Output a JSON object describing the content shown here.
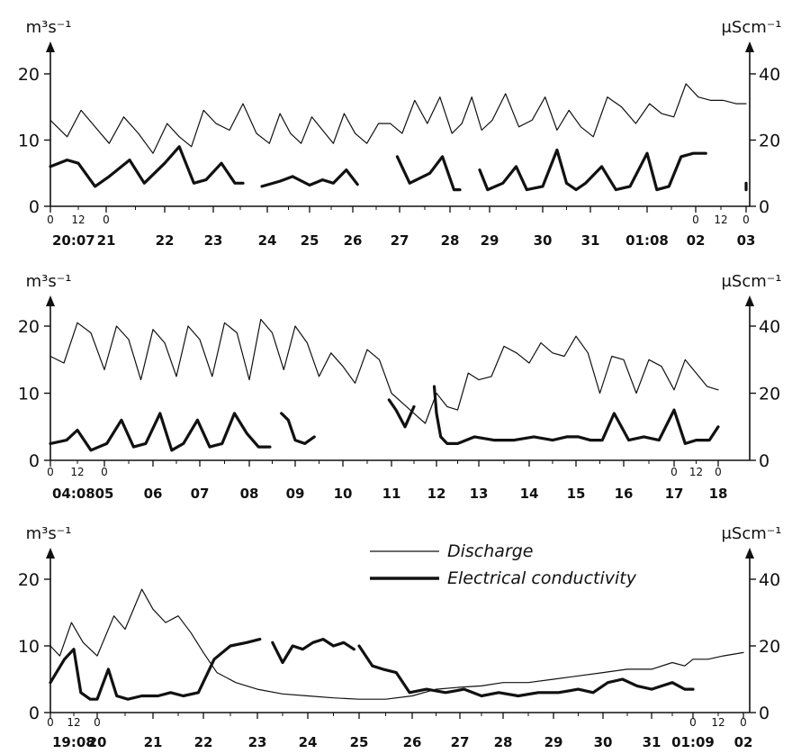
{
  "chart_data": [
    {
      "type": "line",
      "left_unit": "m³s⁻¹",
      "right_unit": "μScm⁻¹",
      "ylim_left": [
        0,
        20
      ],
      "ylim_right": [
        0,
        40
      ],
      "yticks_left": [
        "0",
        "10",
        "20"
      ],
      "yticks_right": [
        "0",
        "20",
        "40"
      ],
      "hour_marks_start": [
        "0",
        "12",
        "0"
      ],
      "hour_marks_end": [
        "0",
        "12",
        "0"
      ],
      "days": [
        "20:07",
        "21",
        "22",
        "23",
        "24",
        "25",
        "26",
        "27",
        "28",
        "29",
        "30",
        "31",
        "01:08",
        "02",
        "03"
      ],
      "series": [
        {
          "name": "Discharge",
          "x": [
            0,
            0.3,
            0.55,
            0.8,
            1.05,
            1.3,
            1.55,
            1.8,
            2.05,
            2.3,
            2.55,
            2.8,
            3.05,
            3.3,
            3.55,
            3.8,
            4.05,
            4.3,
            4.55,
            4.8,
            5.05,
            5.3,
            5.55,
            5.8,
            6.05,
            6.3,
            6.55,
            6.8,
            7.05,
            7.3,
            7.55,
            7.8,
            8.05,
            8.3,
            8.55,
            8.8,
            9.05,
            9.3,
            9.55,
            9.8,
            10.05,
            10.3,
            10.55,
            10.8,
            11.05,
            11.3,
            11.55,
            11.8,
            12.05,
            12.3,
            12.55,
            12.8,
            13.05,
            13.3,
            13.55,
            13.8,
            14
          ],
          "y": [
            13,
            10.5,
            14.5,
            12,
            9.5,
            13.5,
            11,
            8,
            12.5,
            10.5,
            9,
            14.5,
            12.5,
            11.5,
            15.5,
            11,
            9.5,
            14,
            11,
            9.5,
            13.5,
            11.5,
            9.5,
            14,
            11,
            9.5,
            12.5,
            12.5,
            11,
            16,
            12.5,
            16.5,
            11,
            12.5,
            16.5,
            11.5,
            13,
            17,
            12,
            13,
            16.5,
            11.5,
            14.5,
            12,
            10.5,
            16.5,
            15,
            12.5,
            15.5,
            14,
            13.5,
            18.5,
            16.5,
            16,
            16,
            15.5,
            15.5
          ]
        },
        {
          "name": "Electrical conductivity",
          "segments": [
            {
              "x": [
                0,
                0.3,
                0.5,
                0.8,
                1.05,
                1.4,
                1.65,
                2.0,
                2.3,
                2.6,
                2.85,
                3.15,
                3.4,
                3.55
              ],
              "y": [
                6,
                7,
                6.5,
                3,
                4.5,
                7,
                3.5,
                6.5,
                9,
                3.5,
                4,
                6.5,
                3.5,
                3.5
              ]
            },
            {
              "x": [
                3.9,
                4.3,
                4.6,
                5.0,
                5.3,
                5.55,
                5.85,
                6.1
              ],
              "y": [
                3,
                3.8,
                4.5,
                3.2,
                4,
                3.5,
                5.5,
                3.3
              ]
            },
            {
              "x": [
                6.95,
                7.2,
                7.6,
                7.85,
                8.1,
                8.25
              ],
              "y": [
                7.5,
                3.5,
                5,
                7.5,
                2.5,
                2.5
              ]
            },
            {
              "x": [
                8.75,
                8.95,
                9.25,
                9.5,
                9.7,
                10.0,
                10.3,
                10.5
              ],
              "y": [
                5.5,
                2.5,
                3.5,
                6,
                2.5,
                3,
                8.5,
                3.5
              ]
            },
            {
              "x": [
                10.5,
                10.7,
                10.9,
                11.2,
                11.45,
                11.7,
                12.0,
                12.2,
                12.45,
                12.7,
                12.95,
                13.05,
                13.2
              ],
              "y": [
                3.5,
                2.5,
                3.5,
                6,
                2.5,
                3,
                8,
                2.5,
                3,
                7.5,
                8,
                8,
                8
              ]
            },
            {
              "x": [
                14.05,
                14.35,
                14.6,
                14.85,
                15.1,
                15.3,
                15.6,
                15.9,
                16.0
              ],
              "y": [
                2.5,
                3,
                3.5,
                3,
                2.5,
                3,
                3,
                3,
                3
              ]
            }
          ]
        }
      ]
    },
    {
      "type": "line",
      "left_unit": "m³s⁻¹",
      "right_unit": "μScm⁻¹",
      "ylim_left": [
        0,
        20
      ],
      "ylim_right": [
        0,
        40
      ],
      "yticks_left": [
        "0",
        "10",
        "20"
      ],
      "yticks_right": [
        "0",
        "20",
        "40"
      ],
      "hour_marks_start": [
        "0",
        "12",
        "0"
      ],
      "hour_marks_end": [
        "0",
        "12",
        "0"
      ],
      "days": [
        "04:08",
        "05",
        "06",
        "07",
        "08",
        "09",
        "10",
        "11",
        "12",
        "13",
        "14",
        "15",
        "16",
        "17",
        "18"
      ],
      "series": [
        {
          "name": "Discharge",
          "x": [
            0,
            0.25,
            0.5,
            0.75,
            1.0,
            1.25,
            1.5,
            1.75,
            2.0,
            2.25,
            2.5,
            2.75,
            3.0,
            3.25,
            3.5,
            3.75,
            4.0,
            4.25,
            4.5,
            4.75,
            5.0,
            5.25,
            5.5,
            5.75,
            6.0,
            6.25,
            6.5,
            6.75,
            7.0,
            7.25,
            7.5,
            7.75,
            8.0,
            8.25,
            8.5,
            8.75,
            9.0,
            9.25,
            9.5,
            9.75,
            10.0,
            10.25,
            10.5,
            10.75,
            11.0,
            11.25,
            11.5,
            11.75,
            12.0,
            12.25,
            12.5,
            12.75,
            13.0,
            13.25,
            13.5,
            13.75,
            14.0
          ],
          "y": [
            15.5,
            14.5,
            20.5,
            19,
            13.5,
            20,
            18,
            12,
            19.5,
            17.5,
            12.5,
            20,
            18,
            12.5,
            20.5,
            19,
            12,
            21,
            19,
            13.5,
            20,
            17.5,
            12.5,
            16,
            14,
            11.5,
            16.5,
            15,
            10,
            8.5,
            7,
            5.5,
            10,
            8,
            7.5,
            13,
            12,
            12.5,
            17,
            16,
            14.5,
            17.5,
            16,
            15.5,
            18.5,
            16,
            10,
            15.5,
            15,
            10,
            15,
            14,
            10.5,
            15,
            13,
            11,
            10.5
          ]
        },
        {
          "name": "Electrical conductivity",
          "segments": [
            {
              "x": [
                0,
                0.3,
                0.5,
                0.75,
                1.05,
                1.35,
                1.6,
                1.85,
                2.15,
                2.4,
                2.65,
                2.95,
                3.2,
                3.45,
                3.7,
                3.95,
                4.2,
                4.45
              ],
              "y": [
                2.5,
                3,
                4.5,
                1.5,
                2.5,
                6,
                2,
                2.5,
                7,
                1.5,
                2.5,
                6,
                2,
                2.5,
                7,
                4,
                2,
                2
              ]
            },
            {
              "x": [
                4.7,
                4.85,
                5.0,
                5.2,
                5.4
              ],
              "y": [
                7,
                6,
                3,
                2.5,
                3.5
              ]
            },
            {
              "x": [
                6.95,
                7.1,
                7.3,
                7.5
              ],
              "y": [
                9,
                7.5,
                5,
                8
              ]
            },
            {
              "x": [
                7.95,
                8.0,
                8.1,
                8.25,
                8.5,
                8.9,
                9.3,
                9.7,
                10.1,
                10.5,
                10.8,
                11.05,
                11.3,
                11.55,
                11.8,
                12.1,
                12.4,
                12.7,
                13.0,
                13.25,
                13.5,
                13.8,
                14.0
              ],
              "y": [
                11,
                7,
                3.5,
                2.5,
                2.5,
                3.5,
                3,
                3,
                3.5,
                3,
                3.5,
                3.5,
                3,
                3,
                7,
                3,
                3.5,
                3,
                7.5,
                2.5,
                3,
                3,
                5
              ]
            }
          ]
        }
      ]
    },
    {
      "type": "line",
      "left_unit": "m³s⁻¹",
      "right_unit": "μScm⁻¹",
      "ylim_left": [
        0,
        20
      ],
      "ylim_right": [
        0,
        40
      ],
      "yticks_left": [
        "0",
        "10",
        "20"
      ],
      "yticks_right": [
        "0",
        "20",
        "40"
      ],
      "hour_marks_start": [
        "0",
        "12",
        "0"
      ],
      "hour_marks_end": [
        "0",
        "12",
        "0"
      ],
      "days": [
        "19:08",
        "20",
        "21",
        "22",
        "23",
        "24",
        "25",
        "26",
        "27",
        "28",
        "29",
        "30",
        "31",
        "01:09",
        "02"
      ],
      "legend": [
        "Discharge",
        "Electrical conductivity"
      ],
      "series": [
        {
          "name": "Discharge",
          "x": [
            0,
            0.2,
            0.45,
            0.7,
            1.0,
            1.3,
            1.5,
            1.8,
            2.0,
            2.25,
            2.5,
            2.75,
            3.0,
            3.25,
            3.6,
            4.0,
            4.5,
            5.0,
            5.5,
            6.0,
            6.5,
            7.0,
            7.5,
            8.0,
            8.5,
            9.0,
            9.5,
            10.0,
            10.5,
            11.0,
            11.5,
            12.0,
            12.5,
            12.8,
            13.0,
            13.3,
            13.6,
            14.0
          ],
          "y": [
            10,
            8.5,
            13.5,
            10.5,
            8.5,
            14.5,
            12.5,
            18.5,
            15.5,
            13.5,
            14.5,
            12,
            9,
            6,
            4.5,
            3.5,
            2.8,
            2.5,
            2.2,
            2,
            2,
            2.5,
            3.5,
            3.8,
            4,
            4.5,
            4.5,
            5,
            5.5,
            6,
            6.5,
            6.5,
            7.5,
            7,
            8,
            8,
            8.5,
            9
          ]
        },
        {
          "name": "Electrical conductivity",
          "segments": [
            {
              "x": [
                0,
                0.3,
                0.5,
                0.65,
                0.85,
                1.0,
                1.2,
                1.35,
                1.55,
                1.8,
                2.1,
                2.35,
                2.6,
                2.9,
                3.2,
                3.5,
                3.8,
                4.05
              ],
              "y": [
                4.5,
                8,
                9.5,
                3,
                2,
                2,
                6.5,
                2.5,
                2,
                2.5,
                2.5,
                3,
                2.5,
                3,
                8,
                10,
                10.5,
                11
              ]
            },
            {
              "x": [
                4.3,
                4.5,
                4.7,
                4.9,
                5.1,
                5.3,
                5.5,
                5.7,
                5.9
              ],
              "y": [
                10.5,
                7.5,
                10,
                9.5,
                10.5,
                11,
                10,
                10.5,
                9.5
              ]
            },
            {
              "x": [
                6.0,
                6.25,
                6.45,
                6.7,
                6.95,
                7.3,
                7.7,
                8.1,
                8.5,
                8.9,
                9.3,
                9.7,
                10.1,
                10.5,
                10.8,
                11.1,
                11.4,
                11.7,
                12.0,
                12.25,
                12.5,
                12.8,
                13.0
              ],
              "y": [
                10,
                7,
                6.5,
                6,
                3,
                3.5,
                3,
                3.5,
                2.5,
                3,
                2.5,
                3,
                3,
                3.5,
                3,
                4.5,
                5,
                4,
                3.5,
                4,
                4.5,
                3.5,
                3.5
              ]
            }
          ]
        }
      ]
    }
  ]
}
